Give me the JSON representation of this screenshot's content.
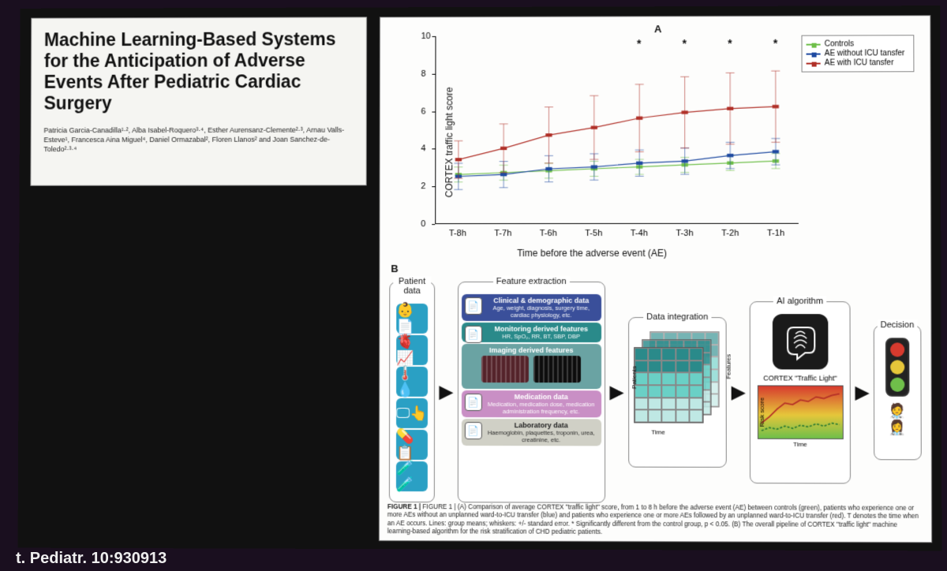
{
  "title": "Machine Learning-Based Systems for the Anticipation of Adverse Events After Pediatric Cardiac Surgery",
  "authors": "Patricia Garcia-Canadilla¹·², Alba Isabel-Roquero³·⁴, Esther Aurensanz-Clemente²·³, Arnau Valls-Esteve¹, Francesca Aina Miguel⁴, Daniel Ormazabal², Floren Llanos² and Joan Sanchez-de-Toledo²·³·⁴",
  "citation": "t. Pediatr. 10:930913",
  "panelA": {
    "label": "A",
    "type": "line-errorbar",
    "ylabel": "CORTEX traffic light score",
    "xlabel": "Time before the adverse event (AE)",
    "ylim": [
      0,
      10
    ],
    "yticks": [
      0,
      2,
      4,
      6,
      8,
      10
    ],
    "xticks": [
      "T-8h",
      "T-7h",
      "T-6h",
      "T-5h",
      "T-4h",
      "T-3h",
      "T-2h",
      "T-1h"
    ],
    "legend": [
      {
        "label": "Controls",
        "color": "#6fbf4a"
      },
      {
        "label": "AE without ICU tansfer",
        "color": "#1f4aa1"
      },
      {
        "label": "AE with ICU tansfer",
        "color": "#b03028"
      }
    ],
    "series": {
      "controls": {
        "color": "#6fbf4a",
        "mean": [
          2.6,
          2.7,
          2.8,
          2.9,
          3.0,
          3.1,
          3.2,
          3.3
        ],
        "err": [
          0.4,
          0.4,
          0.4,
          0.4,
          0.4,
          0.4,
          0.4,
          0.4
        ]
      },
      "ae_no_icu": {
        "color": "#1f4aa1",
        "mean": [
          2.5,
          2.6,
          2.9,
          3.0,
          3.2,
          3.3,
          3.6,
          3.8
        ],
        "err": [
          0.7,
          0.7,
          0.7,
          0.7,
          0.7,
          0.7,
          0.7,
          0.7
        ]
      },
      "ae_icu": {
        "color": "#b03028",
        "mean": [
          3.4,
          4.0,
          4.7,
          5.1,
          5.6,
          5.9,
          6.1,
          6.2
        ],
        "err": [
          1.0,
          1.3,
          1.5,
          1.7,
          1.8,
          1.9,
          1.9,
          1.9
        ]
      }
    },
    "significance_x": [
      "T-4h",
      "T-3h",
      "T-2h",
      "T-1h"
    ],
    "background": "#ffffff",
    "axis_color": "#000000",
    "label_fontsize": 12,
    "tick_fontsize": 11
  },
  "panelB": {
    "label": "B",
    "columns": {
      "patient_data": {
        "title": "Patient data",
        "icon_bg": "#2aa0c4",
        "icons": [
          "👶📄",
          "🫀📈",
          "🌡️💧",
          "🖵👆",
          "💊📋",
          "🧪🧪"
        ]
      },
      "feature_extraction": {
        "title": "Feature extraction",
        "bands": [
          {
            "title": "Clinical & demographic data",
            "sub": "Age, weight, diagnosis, surgery time, cardiac physiology, etc.",
            "bg": "#3a4f9a",
            "icon": "📄"
          },
          {
            "title": "Monitoring derived features",
            "sub": "HR, SpO₂, RR, BT, SBP, DBP",
            "bg": "#2a8a8a",
            "icon": "📄"
          },
          {
            "title": "Imaging derived features",
            "sub": "",
            "bg": "#6aa3a3",
            "icon": "",
            "thumbs": [
              "#54232a",
              "#0d0d0d"
            ]
          },
          {
            "title": "Medication data",
            "sub": "Medication, medication dose, medication administration frequency, etc.",
            "bg": "#c98fc5",
            "icon": "📄"
          },
          {
            "title": "Laboratory data",
            "sub": "Haemoglobin, plaquettes, troponin, urea, creatinine, etc.",
            "bg": "#d0d0c6",
            "icon": "📄",
            "text": "#222"
          }
        ]
      },
      "data_integration": {
        "title": "Data integration",
        "ylabel": "Patients",
        "xlabel": "Time",
        "side": "Features",
        "palette": [
          "#2a8a8a",
          "#2a8a8a",
          "#6ad0c6",
          "#6ad0c6",
          "#bfe8e4",
          "#bfe8e4"
        ]
      },
      "ai": {
        "title": "AI algorithm",
        "subtitle": "CORTEX \"Traffic Light\"",
        "risk_y": "Risk score",
        "risk_x": "Time",
        "risk_colors": {
          "low": "#6fbf4a",
          "mid": "#e6c63a",
          "high": "#d73a2e"
        },
        "line_colors": {
          "red": "#b52f27",
          "green": "#2e7d32"
        }
      },
      "decision": {
        "title": "Decision",
        "lights": [
          "#d73a2e",
          "#e6c63a",
          "#6fbf4a"
        ]
      }
    }
  },
  "caption": "FIGURE 1 | (A) Comparison of average CORTEX \"traffic light\" score, from 1 to 8 h before the adverse event (AE) between controls (green), patients who experience one or more AEs without an unplanned ward-to-ICU transfer (blue) and patients who experience one or more AEs followed by an unplanned ward-to-ICU transfer (red). T denotes the time when an AE occurs. Lines: group means; whiskers: +/- standard error. * Significantly different from the control group, p < 0.05. (B) The overall pipeline of CORTEX \"traffic light\" machine learning-based algorithm for the risk stratification of CHD pediatric patients."
}
